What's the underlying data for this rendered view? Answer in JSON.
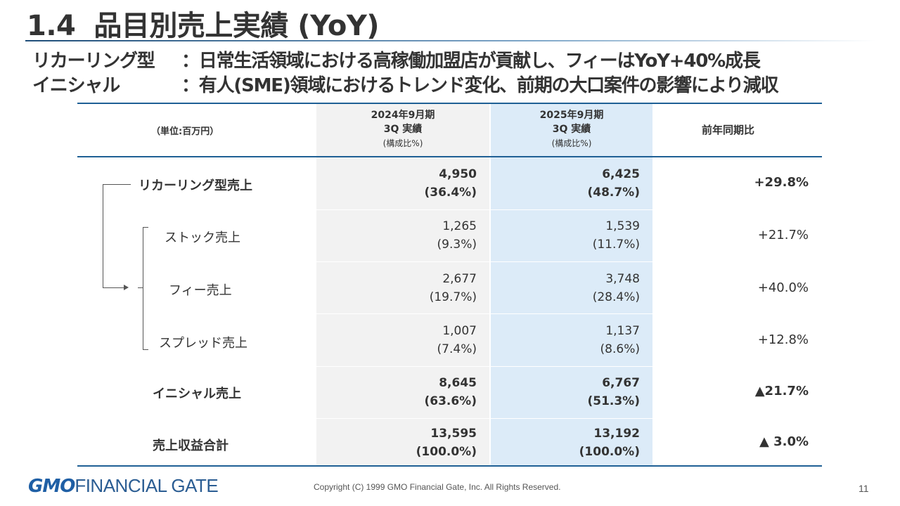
{
  "slide": {
    "number_label": "1.4",
    "title": "品目別売上実績 (YoY)",
    "subtitle1_label": "リカーリング型",
    "subtitle1_text": "：日常生活領域における高稼働加盟店が貢献し、フィーはYoY+40%成長",
    "subtitle2_label": "イニシャル",
    "subtitle2_text": "：有人(SME)領域におけるトレンド変化、前期の大口案件の影響により減収"
  },
  "table": {
    "unit_label": "（単位:百万円）",
    "col_2024": {
      "line1": "2024年9月期",
      "line2": "3Q 実績",
      "line3": "(構成比%)"
    },
    "col_2025": {
      "line1": "2025年9月期",
      "line2": "3Q 実績",
      "line3": "(構成比%)"
    },
    "col_yoy": "前年同期比",
    "rows": [
      {
        "label": "リカーリング型売上",
        "v2024": "4,950",
        "r2024": "(36.4%)",
        "v2025": "6,425",
        "r2025": "(48.7%)",
        "yoy": "+29.8%"
      },
      {
        "label": "ストック売上",
        "v2024": "1,265",
        "r2024": "(9.3%)",
        "v2025": "1,539",
        "r2025": "(11.7%)",
        "yoy": "+21.7%"
      },
      {
        "label": "フィー売上",
        "v2024": "2,677",
        "r2024": "(19.7%)",
        "v2025": "3,748",
        "r2025": "(28.4%)",
        "yoy": "+40.0%"
      },
      {
        "label": "スプレッド売上",
        "v2024": "1,007",
        "r2024": "(7.4%)",
        "v2025": "1,137",
        "r2025": "(8.6%)",
        "yoy": "+12.8%"
      },
      {
        "label": "イニシャル売上",
        "v2024": "8,645",
        "r2024": "(63.6%)",
        "v2025": "6,767",
        "r2025": "(51.3%)",
        "yoy": "▲21.7%"
      },
      {
        "label": "売上収益合計",
        "v2024": "13,595",
        "r2024": "(100.0%)",
        "v2025": "13,192",
        "r2025": "(100.0%)",
        "yoy": "▲ 3.0%"
      }
    ]
  },
  "footer": {
    "logo_gmo": "GMO",
    "logo_text": "FINANCIAL GATE",
    "copyright": "Copyright (C) 1999 GMO Financial Gate, Inc. All Rights Reserved.",
    "page_number": "11"
  }
}
